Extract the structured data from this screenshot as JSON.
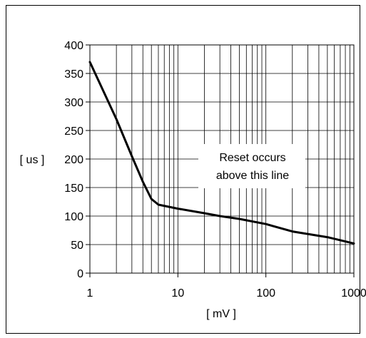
{
  "chart_data": {
    "type": "line",
    "xscale": "log",
    "xlim": [
      1,
      1000
    ],
    "ylim": [
      0,
      400
    ],
    "xlabel": "[ mV ]",
    "ylabel": "[ us ]",
    "x_ticks": [
      1,
      10,
      100,
      1000
    ],
    "x_tick_labels": [
      "1",
      "10",
      "100",
      "1000"
    ],
    "y_ticks": [
      0,
      50,
      100,
      150,
      200,
      250,
      300,
      350,
      400
    ],
    "y_tick_labels": [
      "0",
      "50",
      "100",
      "150",
      "200",
      "250",
      "300",
      "350",
      "400"
    ],
    "grid": "on",
    "annotation": [
      "Reset occurs",
      "above this line"
    ],
    "series": [
      {
        "color": "#000000",
        "x": [
          1,
          2,
          3,
          4,
          5,
          6,
          10,
          20,
          30,
          50,
          100,
          200,
          500,
          1000
        ],
        "y": [
          370,
          270,
          205,
          160,
          130,
          120,
          113,
          105,
          100,
          95,
          86,
          73,
          63,
          52
        ]
      }
    ]
  }
}
